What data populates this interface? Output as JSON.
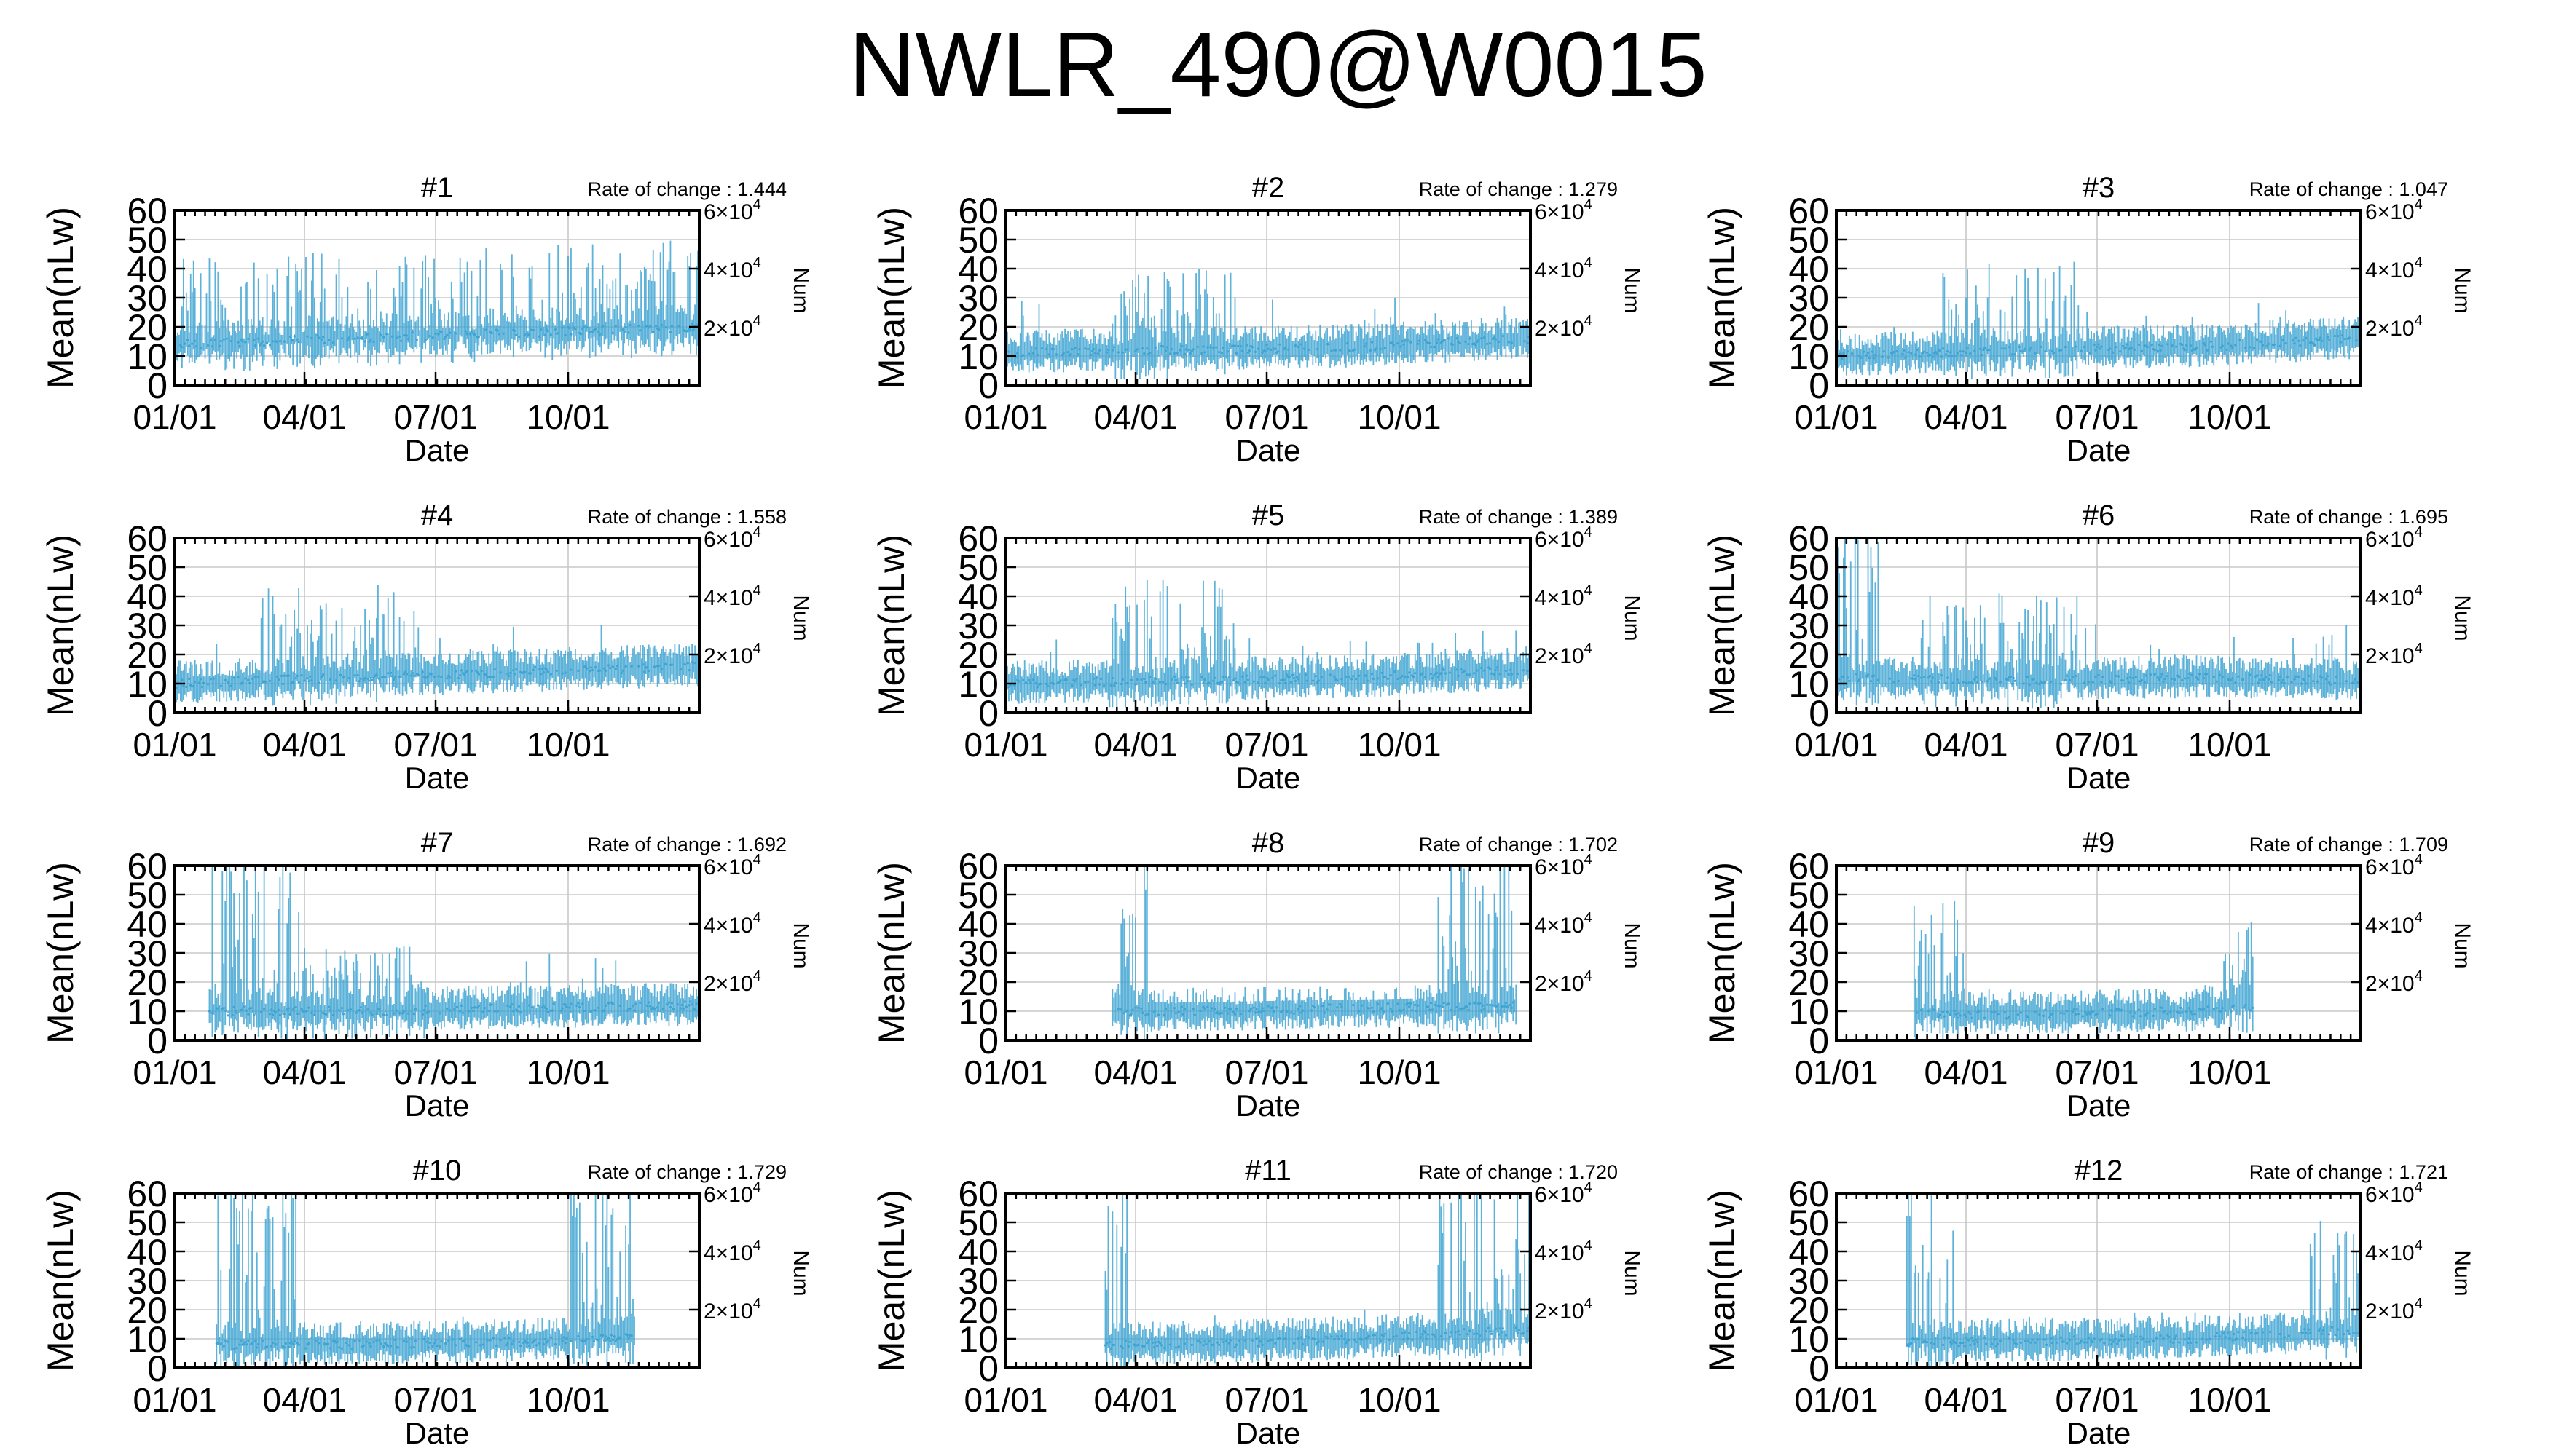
{
  "title": "NWLR_490@W0015",
  "colors": {
    "series": "#3fa4d2",
    "axis": "#000000",
    "grid": "#c8c8c8"
  },
  "chart_data": {
    "type": "line",
    "layout": "grid of 12 panels (4 rows x 3 columns)",
    "xlabel": "Date",
    "ylabel": "Mean(nLw)",
    "y2label": "Num",
    "xticks": [
      "01/01",
      "04/01",
      "07/01",
      "10/01"
    ],
    "xrange_days": [
      1,
      365
    ],
    "xtick_days": [
      1,
      91,
      182,
      274
    ],
    "ylim": [
      0,
      60
    ],
    "yticks": [
      "0",
      "10",
      "20",
      "30",
      "40",
      "50",
      "60"
    ],
    "y2lim": [
      0,
      60000
    ],
    "y2ticks": [
      {
        "mantissa": "2",
        "times": "×",
        "base": "10",
        "exp": "4",
        "value": 20000
      },
      {
        "mantissa": "4",
        "times": "×",
        "base": "10",
        "exp": "4",
        "value": 40000
      },
      {
        "mantissa": "6",
        "times": "×",
        "base": "10",
        "exp": "4",
        "value": 60000
      }
    ],
    "grid": true,
    "rate_label": "Rate of change :",
    "panels": [
      {
        "label": "#1",
        "rate": "1.444",
        "base": [
          14,
          16,
          18,
          20
        ],
        "spike": 32,
        "burst": [
          [
            1,
            365,
            30
          ]
        ],
        "gaps": [],
        "base_range": [
          1,
          365
        ]
      },
      {
        "label": "#2",
        "rate": "1.279",
        "base": [
          11,
          12,
          13,
          16
        ],
        "spike": 18,
        "burst": [
          [
            75,
            160,
            28
          ]
        ],
        "gaps": [],
        "base_range": [
          1,
          365
        ]
      },
      {
        "label": "#3",
        "rate": "1.047",
        "base": [
          10,
          12,
          13,
          16
        ],
        "spike": 14,
        "burst": [
          [
            75,
            175,
            30
          ]
        ],
        "gaps": [],
        "base_range": [
          1,
          365
        ]
      },
      {
        "label": "#4",
        "rate": "1.558",
        "base": [
          10,
          12,
          14,
          16
        ],
        "spike": 16,
        "burst": [
          [
            60,
            170,
            32
          ]
        ],
        "gaps": [],
        "base_range": [
          1,
          365
        ]
      },
      {
        "label": "#5",
        "rate": "1.389",
        "base": [
          10,
          11,
          12,
          15
        ],
        "spike": 15,
        "burst": [
          [
            70,
            160,
            35
          ]
        ],
        "gaps": [],
        "base_range": [
          1,
          365
        ]
      },
      {
        "label": "#6",
        "rate": "1.695",
        "base": [
          12,
          11,
          12,
          11
        ],
        "spike": 20,
        "burst": [
          [
            1,
            30,
            60
          ],
          [
            60,
            175,
            30
          ]
        ],
        "gaps": [],
        "base_range": [
          1,
          365
        ]
      },
      {
        "label": "#7",
        "rate": "1.692",
        "base": [
          10,
          10,
          11,
          12
        ],
        "spike": 20,
        "burst": [
          [
            25,
            90,
            60
          ],
          [
            90,
            175,
            22
          ]
        ],
        "gaps": [],
        "base_range": [
          25,
          365
        ]
      },
      {
        "label": "#8",
        "rate": "1.702",
        "base": [
          10,
          10,
          11,
          12
        ],
        "spike": 12,
        "burst": [
          [
            80,
            100,
            55
          ],
          [
            300,
            355,
            60
          ]
        ],
        "gaps": [
          [
            100,
            290,
            0
          ]
        ],
        "base_range": [
          75,
          355
        ]
      },
      {
        "label": "#9",
        "rate": "1.709",
        "base": [
          9,
          9,
          10,
          14
        ],
        "spike": 10,
        "burst": [
          [
            55,
            90,
            40
          ],
          [
            270,
            290,
            30
          ]
        ],
        "gaps": [],
        "base_range": [
          85,
          290
        ]
      },
      {
        "label": "#10",
        "rate": "1.729",
        "base": [
          8,
          8,
          9,
          12
        ],
        "spike": 10,
        "burst": [
          [
            30,
            85,
            55
          ],
          [
            275,
            320,
            60
          ]
        ],
        "gaps": [],
        "base_range": [
          80,
          320
        ]
      },
      {
        "label": "#11",
        "rate": "1.720",
        "base": [
          8,
          8,
          10,
          13
        ],
        "spike": 10,
        "burst": [
          [
            70,
            85,
            60
          ],
          [
            300,
            365,
            60
          ]
        ],
        "gaps": [],
        "base_range": [
          85,
          365
        ]
      },
      {
        "label": "#12",
        "rate": "1.721",
        "base": [
          9,
          9,
          10,
          13
        ],
        "spike": 10,
        "burst": [
          [
            50,
            85,
            60
          ],
          [
            330,
            365,
            40
          ]
        ],
        "gaps": [],
        "base_range": [
          85,
          365
        ]
      }
    ]
  }
}
